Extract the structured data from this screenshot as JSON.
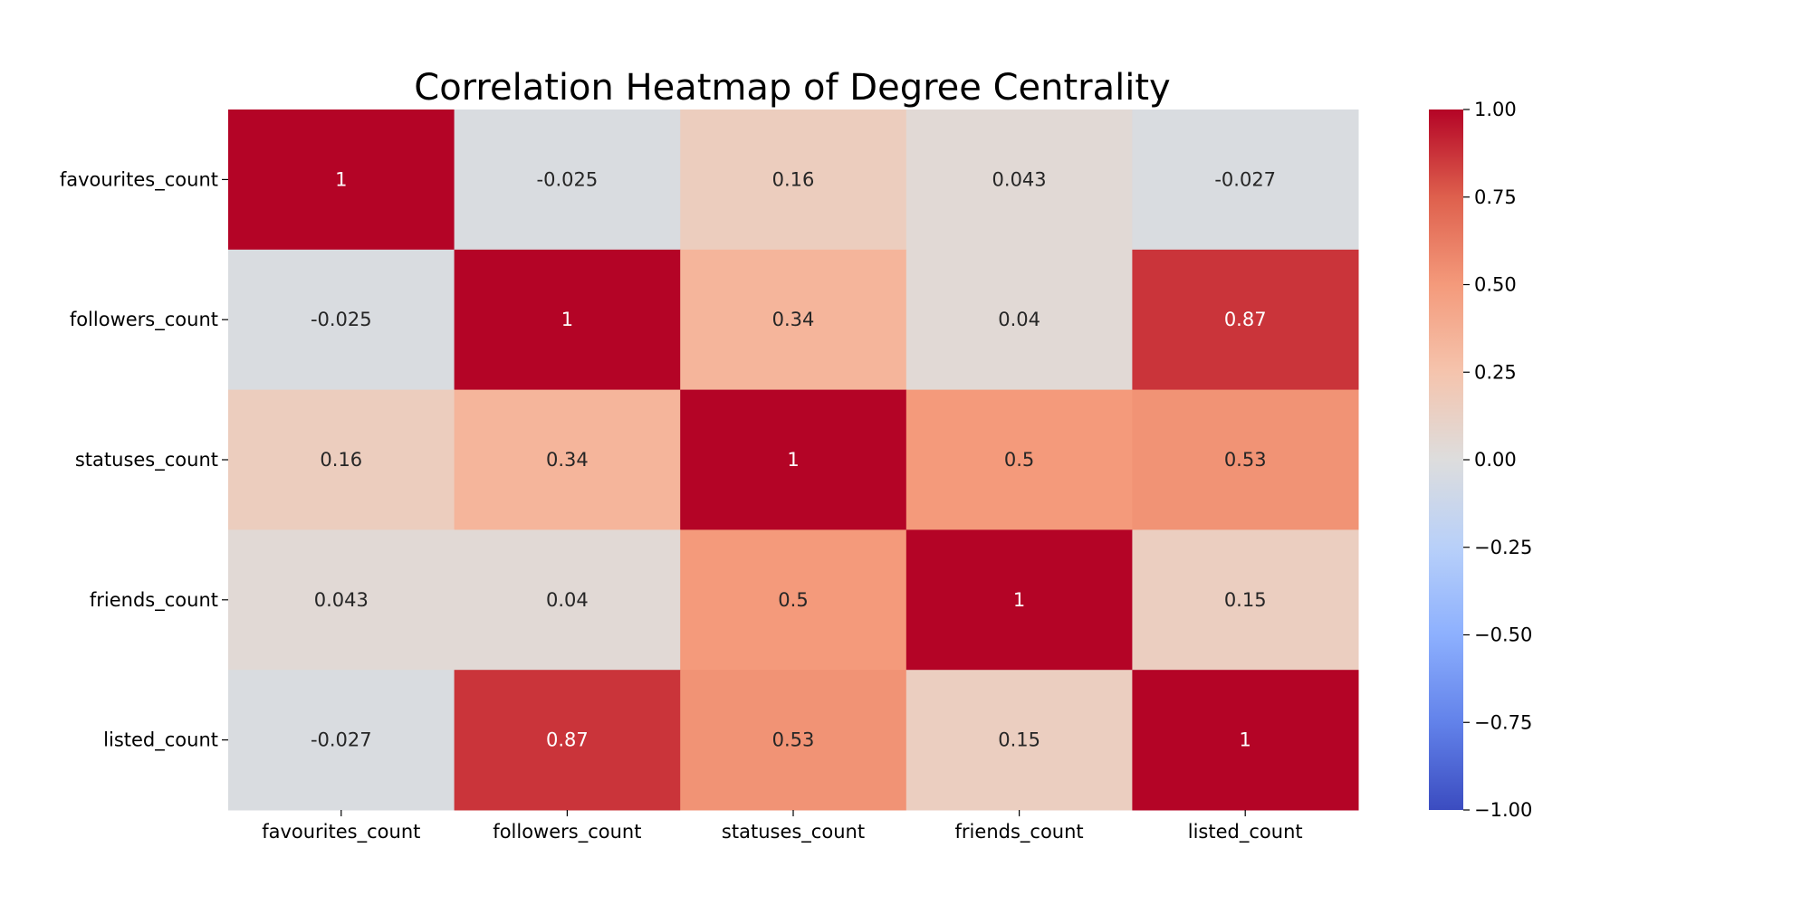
{
  "chart_data": {
    "type": "heatmap",
    "title": "Correlation Heatmap of Degree Centrality",
    "xlabel": "",
    "ylabel": "",
    "x_categories": [
      "favourites_count",
      "followers_count",
      "statuses_count",
      "friends_count",
      "listed_count"
    ],
    "y_categories": [
      "favourites_count",
      "followers_count",
      "statuses_count",
      "friends_count",
      "listed_count"
    ],
    "values": [
      [
        1,
        -0.025,
        0.16,
        0.043,
        -0.027
      ],
      [
        -0.025,
        1,
        0.34,
        0.04,
        0.87
      ],
      [
        0.16,
        0.34,
        1,
        0.5,
        0.53
      ],
      [
        0.043,
        0.04,
        0.5,
        1,
        0.15
      ],
      [
        -0.027,
        0.87,
        0.53,
        0.15,
        1
      ]
    ],
    "cell_labels": [
      [
        "1",
        "-0.025",
        "0.16",
        "0.043",
        "-0.027"
      ],
      [
        "-0.025",
        "1",
        "0.34",
        "0.04",
        "0.87"
      ],
      [
        "0.16",
        "0.34",
        "1",
        "0.5",
        "0.53"
      ],
      [
        "0.043",
        "0.04",
        "0.5",
        "1",
        "0.15"
      ],
      [
        "-0.027",
        "0.87",
        "0.53",
        "0.15",
        "1"
      ]
    ],
    "colorscale": "coolwarm",
    "color_range": [
      -1.0,
      1.0
    ],
    "colorbar_ticks": [
      1.0,
      0.75,
      0.5,
      0.25,
      0.0,
      -0.25,
      -0.5,
      -0.75,
      -1.0
    ],
    "colorbar_tick_labels": [
      "1.00",
      "0.75",
      "0.50",
      "0.25",
      "0.00",
      "−0.25",
      "−0.50",
      "−0.75",
      "−1.00"
    ],
    "colorbar_placement": "right",
    "grid": false
  }
}
